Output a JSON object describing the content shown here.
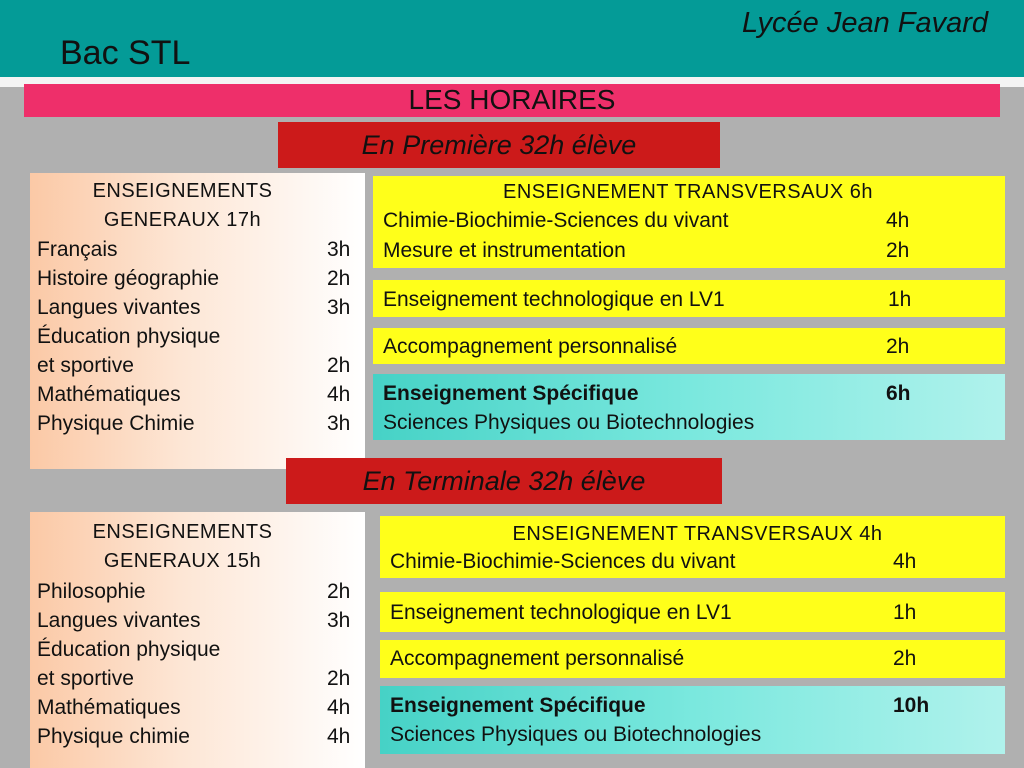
{
  "header": {
    "title": "Bac STL",
    "school": "Lycée Jean Favard"
  },
  "banner": "LES HORAIRES",
  "premiere": {
    "label": "En Première 32h élève",
    "general": {
      "title_line1": "ENSEIGNEMENTS",
      "title_line2": "GENERAUX 17h",
      "subjects": [
        {
          "name": "Français",
          "hours": "3h"
        },
        {
          "name": "Histoire géographie",
          "hours": "2h"
        },
        {
          "name": "Langues vivantes",
          "hours": "3h"
        },
        {
          "name": "Éducation physique",
          "hours": ""
        },
        {
          "name": "et sportive",
          "hours": "2h"
        },
        {
          "name": "Mathématiques",
          "hours": "4h"
        },
        {
          "name": "Physique Chimie",
          "hours": "3h"
        }
      ]
    },
    "transversal": {
      "title": "ENSEIGNEMENT TRANSVERSAUX 6h",
      "items": [
        {
          "name": "Chimie-Biochimie-Sciences du vivant",
          "hours": "4h"
        },
        {
          "name": "Mesure et instrumentation",
          "hours": "2h"
        }
      ]
    },
    "lv1": {
      "name": "Enseignement technologique en LV1",
      "hours": "1h"
    },
    "ap": {
      "name": "Accompagnement personnalisé",
      "hours": "2h"
    },
    "specific": {
      "title": "Enseignement Spécifique",
      "hours": "6h",
      "subtitle": "Sciences Physiques ou Biotechnologies"
    }
  },
  "terminale": {
    "label": "En Terminale 32h élève",
    "general": {
      "title_line1": "ENSEIGNEMENTS",
      "title_line2": "GENERAUX 15h",
      "subjects": [
        {
          "name": "Philosophie",
          "hours": "2h"
        },
        {
          "name": "Langues vivantes",
          "hours": "3h"
        },
        {
          "name": "Éducation physique",
          "hours": ""
        },
        {
          "name": "et sportive",
          "hours": "2h"
        },
        {
          "name": "Mathématiques",
          "hours": "4h"
        },
        {
          "name": "Physique chimie",
          "hours": "4h"
        }
      ]
    },
    "transversal": {
      "title": "ENSEIGNEMENT TRANSVERSAUX 4h",
      "items": [
        {
          "name": "Chimie-Biochimie-Sciences du vivant",
          "hours": "4h"
        }
      ]
    },
    "lv1": {
      "name": "Enseignement technologique en LV1",
      "hours": "1h"
    },
    "ap": {
      "name": "Accompagnement personnalisé",
      "hours": "2h"
    },
    "specific": {
      "title": "Enseignement Spécifique",
      "hours": "10h",
      "subtitle": "Sciences Physiques ou Biotechnologies"
    }
  }
}
